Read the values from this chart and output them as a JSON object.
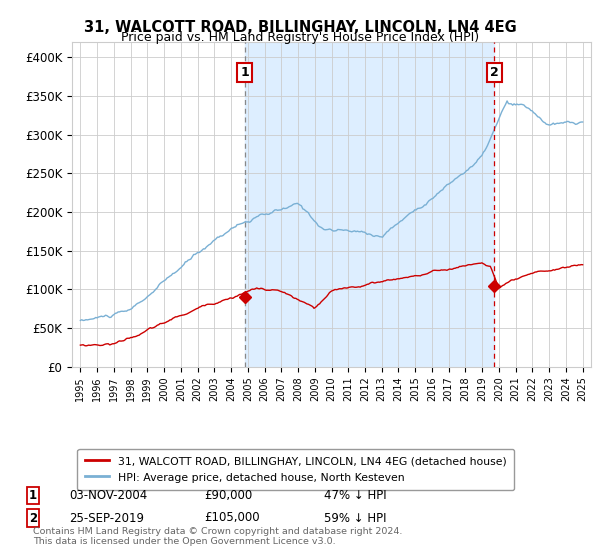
{
  "title": "31, WALCOTT ROAD, BILLINGHAY, LINCOLN, LN4 4EG",
  "subtitle": "Price paid vs. HM Land Registry's House Price Index (HPI)",
  "legend_line1": "31, WALCOTT ROAD, BILLINGHAY, LINCOLN, LN4 4EG (detached house)",
  "legend_line2": "HPI: Average price, detached house, North Kesteven",
  "annotation1_date": "03-NOV-2004",
  "annotation1_price": "£90,000",
  "annotation1_pct": "47% ↓ HPI",
  "annotation2_date": "25-SEP-2019",
  "annotation2_price": "£105,000",
  "annotation2_pct": "59% ↓ HPI",
  "footer": "Contains HM Land Registry data © Crown copyright and database right 2024.\nThis data is licensed under the Open Government Licence v3.0.",
  "red_color": "#cc0000",
  "blue_color": "#7ab0d4",
  "shade_color": "#ddeeff",
  "grid_color": "#cccccc",
  "bg_color": "#ffffff",
  "box_color": "#cc0000",
  "dashed_line1_color": "#888888",
  "dashed_line2_color": "#cc0000",
  "dashed_line1_x": 2004.83,
  "dashed_line2_x": 2019.72,
  "marker1_x": 2004.83,
  "marker1_y": 90000,
  "marker2_x": 2019.72,
  "marker2_y": 105000,
  "ylim": [
    0,
    420000
  ],
  "xlim": [
    1994.5,
    2025.5
  ],
  "yticks": [
    0,
    50000,
    100000,
    150000,
    200000,
    250000,
    300000,
    350000,
    400000
  ],
  "ytick_labels": [
    "£0",
    "£50K",
    "£100K",
    "£150K",
    "£200K",
    "£250K",
    "£300K",
    "£350K",
    "£400K"
  ]
}
